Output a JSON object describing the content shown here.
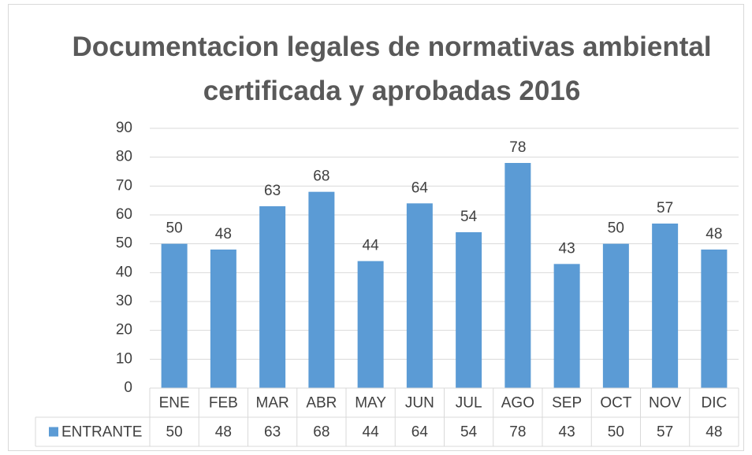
{
  "chart_data": {
    "type": "bar",
    "title": "Documentacion legales de normativas ambiental certificada y aprobadas 2016",
    "categories": [
      "ENE",
      "FEB",
      "MAR",
      "ABR",
      "MAY",
      "JUN",
      "JUL",
      "AGO",
      "SEP",
      "OCT",
      "NOV",
      "DIC"
    ],
    "series": [
      {
        "name": "ENTRANTE",
        "color": "#5b9bd5",
        "values": [
          50,
          48,
          63,
          68,
          44,
          64,
          54,
          78,
          43,
          50,
          57,
          48
        ]
      }
    ],
    "ylim": [
      0,
      90
    ],
    "yticks": [
      0,
      10,
      20,
      30,
      40,
      50,
      60,
      70,
      80,
      90
    ],
    "grid": true,
    "data_table": true
  }
}
